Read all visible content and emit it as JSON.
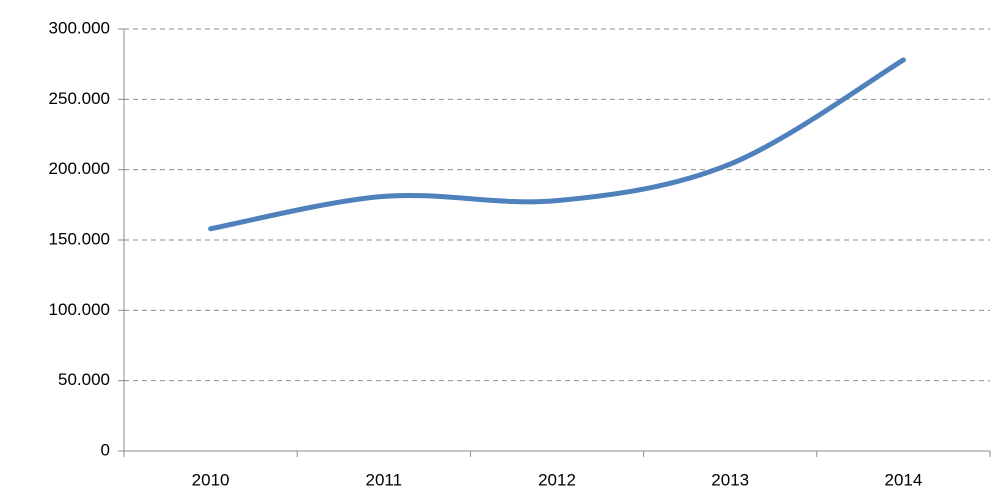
{
  "chart_data": {
    "type": "line",
    "categories": [
      "2010",
      "2011",
      "2012",
      "2013",
      "2014"
    ],
    "series": [
      {
        "color": "#4f81bd",
        "values": [
          158000,
          181000,
          178000,
          204000,
          278000
        ]
      }
    ],
    "ylim": [
      0,
      300000
    ],
    "yticks": [
      0,
      {
        "value": 50000,
        "label": "50.000"
      },
      {
        "value": 100000,
        "label": "100.000"
      },
      {
        "value": 150000,
        "label": "150.000"
      },
      {
        "value": 200000,
        "label": "200.000"
      },
      {
        "value": 250000,
        "label": "250.000"
      },
      {
        "value": 300000,
        "label": "300.000"
      }
    ],
    "grid": true,
    "smooth": true
  }
}
